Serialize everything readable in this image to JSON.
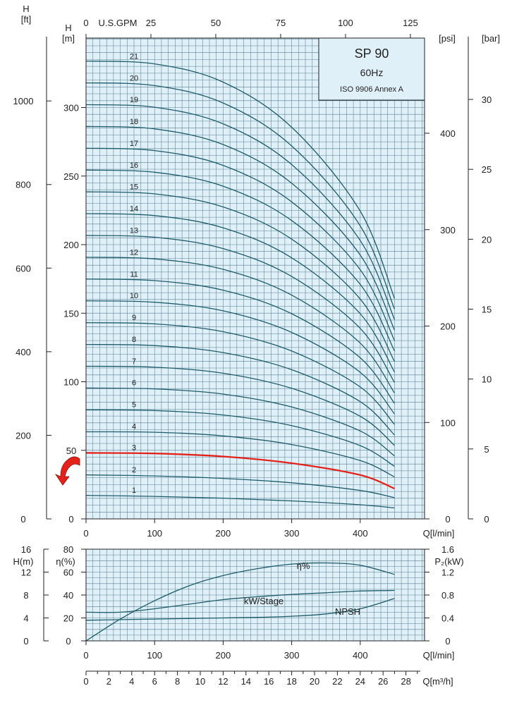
{
  "chart_data": [
    {
      "type": "line",
      "title": "SP 90",
      "subtitle_lines": [
        "60Hz",
        "ISO 9906 Annex A"
      ],
      "axes": {
        "left_outer": {
          "label_top": "H",
          "label_unit": "[ft]",
          "ticks": [
            0,
            200,
            400,
            600,
            800,
            1000
          ]
        },
        "left_inner": {
          "label_top": "H",
          "label_unit": "[m]",
          "ticks": [
            0,
            50,
            100,
            150,
            200,
            250,
            300
          ]
        },
        "top": {
          "label": "U.S.GPM",
          "ticks": [
            0,
            25,
            50,
            75,
            100,
            125
          ]
        },
        "bottom": {
          "label": "Q[l/min]",
          "ticks": [
            0,
            100,
            200,
            300,
            400
          ]
        },
        "right_inner": {
          "label": "[psi]",
          "ticks": [
            0,
            100,
            200,
            300,
            400
          ]
        },
        "right_outer": {
          "label": "[bar]",
          "ticks": [
            0,
            5,
            10,
            15,
            20,
            25,
            30
          ]
        }
      },
      "xlim": [
        0,
        500
      ],
      "ylim": [
        0,
        350
      ],
      "highlighted_stage": 3,
      "series": [
        {
          "name": "1",
          "x": [
            0,
            100,
            200,
            300,
            400,
            450
          ],
          "y": [
            17.1,
            16.4,
            15.1,
            13.1,
            10.3,
            8.0
          ]
        },
        {
          "name": "2",
          "x": [
            0,
            100,
            200,
            300,
            400,
            450
          ],
          "y": [
            32.1,
            31.3,
            29.5,
            26.3,
            20.7,
            15.5
          ]
        },
        {
          "name": "3",
          "x": [
            0,
            100,
            200,
            300,
            400,
            450
          ],
          "y": [
            48.1,
            47.7,
            45.5,
            40.6,
            32.0,
            22.1
          ]
        },
        {
          "name": "4",
          "x": [
            0,
            100,
            200,
            300,
            400,
            450
          ],
          "y": [
            63.5,
            63.2,
            60.5,
            54.2,
            42.5,
            30.6
          ]
        },
        {
          "name": "5",
          "x": [
            0,
            100,
            200,
            300,
            400,
            450
          ],
          "y": [
            79.5,
            79.0,
            75.8,
            68.0,
            53.4,
            38.3
          ]
        },
        {
          "name": "6",
          "x": [
            0,
            100,
            200,
            300,
            400,
            450
          ],
          "y": [
            95.4,
            94.8,
            91.0,
            81.6,
            64.1,
            45.9
          ]
        },
        {
          "name": "7",
          "x": [
            0,
            100,
            200,
            300,
            400,
            450
          ],
          "y": [
            111.3,
            110.6,
            106.2,
            95.2,
            74.8,
            53.6
          ]
        },
        {
          "name": "8",
          "x": [
            0,
            100,
            200,
            300,
            400,
            450
          ],
          "y": [
            127.2,
            126.4,
            121.3,
            108.8,
            85.5,
            61.2
          ]
        },
        {
          "name": "9",
          "x": [
            0,
            100,
            200,
            300,
            400,
            450
          ],
          "y": [
            143.1,
            142.2,
            136.5,
            122.4,
            96.2,
            68.9
          ]
        },
        {
          "name": "10",
          "x": [
            0,
            100,
            200,
            300,
            400,
            450
          ],
          "y": [
            159.0,
            158.0,
            151.7,
            136.0,
            106.9,
            76.5
          ]
        },
        {
          "name": "11",
          "x": [
            0,
            100,
            200,
            300,
            400,
            450
          ],
          "y": [
            174.9,
            173.8,
            166.8,
            149.6,
            117.5,
            84.2
          ]
        },
        {
          "name": "12",
          "x": [
            0,
            100,
            200,
            300,
            400,
            450
          ],
          "y": [
            190.8,
            189.6,
            182.0,
            163.2,
            128.2,
            91.8
          ]
        },
        {
          "name": "13",
          "x": [
            0,
            100,
            200,
            300,
            400,
            450
          ],
          "y": [
            206.7,
            205.4,
            197.1,
            176.8,
            138.9,
            99.5
          ]
        },
        {
          "name": "14",
          "x": [
            0,
            100,
            200,
            300,
            400,
            450
          ],
          "y": [
            222.6,
            221.2,
            212.3,
            190.4,
            149.6,
            107.1
          ]
        },
        {
          "name": "15",
          "x": [
            0,
            100,
            200,
            300,
            400,
            450
          ],
          "y": [
            238.5,
            237.0,
            227.5,
            204.0,
            160.3,
            114.8
          ]
        },
        {
          "name": "16",
          "x": [
            0,
            100,
            200,
            300,
            400,
            450
          ],
          "y": [
            254.4,
            252.8,
            242.6,
            217.6,
            171.0,
            122.4
          ]
        },
        {
          "name": "17",
          "x": [
            0,
            100,
            200,
            300,
            400,
            450
          ],
          "y": [
            270.3,
            268.6,
            257.8,
            231.2,
            181.7,
            130.1
          ]
        },
        {
          "name": "18",
          "x": [
            0,
            100,
            200,
            300,
            400,
            450
          ],
          "y": [
            286.2,
            284.4,
            273.0,
            244.8,
            192.4,
            137.7
          ]
        },
        {
          "name": "19",
          "x": [
            0,
            100,
            200,
            300,
            400,
            450
          ],
          "y": [
            302.1,
            300.2,
            288.1,
            258.4,
            203.0,
            145.4
          ]
        },
        {
          "name": "20",
          "x": [
            0,
            100,
            200,
            300,
            400,
            450
          ],
          "y": [
            318.0,
            316.0,
            303.3,
            272.0,
            213.7,
            153.0
          ]
        },
        {
          "name": "21",
          "x": [
            0,
            100,
            200,
            300,
            400,
            450
          ],
          "y": [
            333.9,
            331.8,
            318.5,
            285.6,
            224.4,
            160.7
          ]
        }
      ]
    },
    {
      "type": "line",
      "axes": {
        "far_left": {
          "label": "H(m)",
          "ticks": [
            0,
            4,
            8,
            12,
            16
          ]
        },
        "left": {
          "label": "η(%)",
          "ticks": [
            0,
            20,
            40,
            60,
            80
          ]
        },
        "right": {
          "label": "P₂(kW)",
          "ticks": [
            "0",
            "0.4",
            "0.8",
            "1.2",
            "1.6"
          ]
        },
        "bottom": {
          "label": "Q[l/min]",
          "ticks": [
            0,
            100,
            200,
            300,
            400
          ]
        }
      },
      "xlim": [
        0,
        500
      ],
      "ylim": [
        0,
        80
      ],
      "series": [
        {
          "name": "η%",
          "x": [
            0,
            50,
            100,
            150,
            200,
            250,
            300,
            350,
            400,
            450
          ],
          "y": [
            0,
            19,
            35,
            48,
            57,
            63,
            67,
            68,
            66,
            58
          ]
        },
        {
          "name": "kW/Stage",
          "x": [
            0,
            50,
            100,
            150,
            200,
            250,
            300,
            350,
            400,
            450
          ],
          "y": [
            25,
            25,
            28,
            32,
            36,
            38.5,
            40.5,
            42,
            43.5,
            44
          ]
        },
        {
          "name": "NPSH",
          "x": [
            0,
            50,
            100,
            150,
            200,
            250,
            300,
            350,
            400,
            450
          ],
          "y": [
            18,
            18.5,
            19,
            19.5,
            20,
            20.5,
            21.5,
            23.5,
            28,
            37
          ]
        }
      ]
    },
    {
      "type": "axis",
      "axes": {
        "bottom": {
          "label": "Q[m³/h]",
          "ticks": [
            0,
            2,
            4,
            6,
            8,
            10,
            12,
            14,
            16,
            18,
            20,
            22,
            24,
            26,
            28
          ]
        }
      },
      "xlim": [
        0,
        30
      ]
    }
  ],
  "colors": {
    "background": "#dff0f8",
    "grid": "#5a7f8f",
    "curve": "#1f5c6b",
    "highlight": "#e3231b"
  },
  "icons": {
    "pointer": "curved-arrow-icon"
  }
}
